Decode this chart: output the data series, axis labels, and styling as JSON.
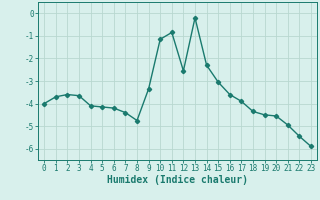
{
  "x": [
    0,
    1,
    2,
    3,
    4,
    5,
    6,
    7,
    8,
    9,
    10,
    11,
    12,
    13,
    14,
    15,
    16,
    17,
    18,
    19,
    20,
    21,
    22,
    23
  ],
  "y": [
    -4.0,
    -3.7,
    -3.6,
    -3.65,
    -4.1,
    -4.15,
    -4.2,
    -4.4,
    -4.75,
    -3.35,
    -1.15,
    -0.85,
    -2.55,
    -0.2,
    -2.3,
    -3.05,
    -3.6,
    -3.9,
    -4.35,
    -4.5,
    -4.55,
    -4.95,
    -5.45,
    -5.9
  ],
  "line_color": "#1a7a6e",
  "marker": "D",
  "markersize": 2.2,
  "linewidth": 1.0,
  "bg_color": "#d8f0ec",
  "grid_color": "#b8d8d0",
  "xlabel": "Humidex (Indice chaleur)",
  "xlabel_fontsize": 7,
  "xlim": [
    -0.5,
    23.5
  ],
  "ylim": [
    -6.5,
    0.5
  ],
  "yticks": [
    0,
    -1,
    -2,
    -3,
    -4,
    -5,
    -6
  ],
  "xticks": [
    0,
    1,
    2,
    3,
    4,
    5,
    6,
    7,
    8,
    9,
    10,
    11,
    12,
    13,
    14,
    15,
    16,
    17,
    18,
    19,
    20,
    21,
    22,
    23
  ],
  "tick_fontsize": 5.5
}
